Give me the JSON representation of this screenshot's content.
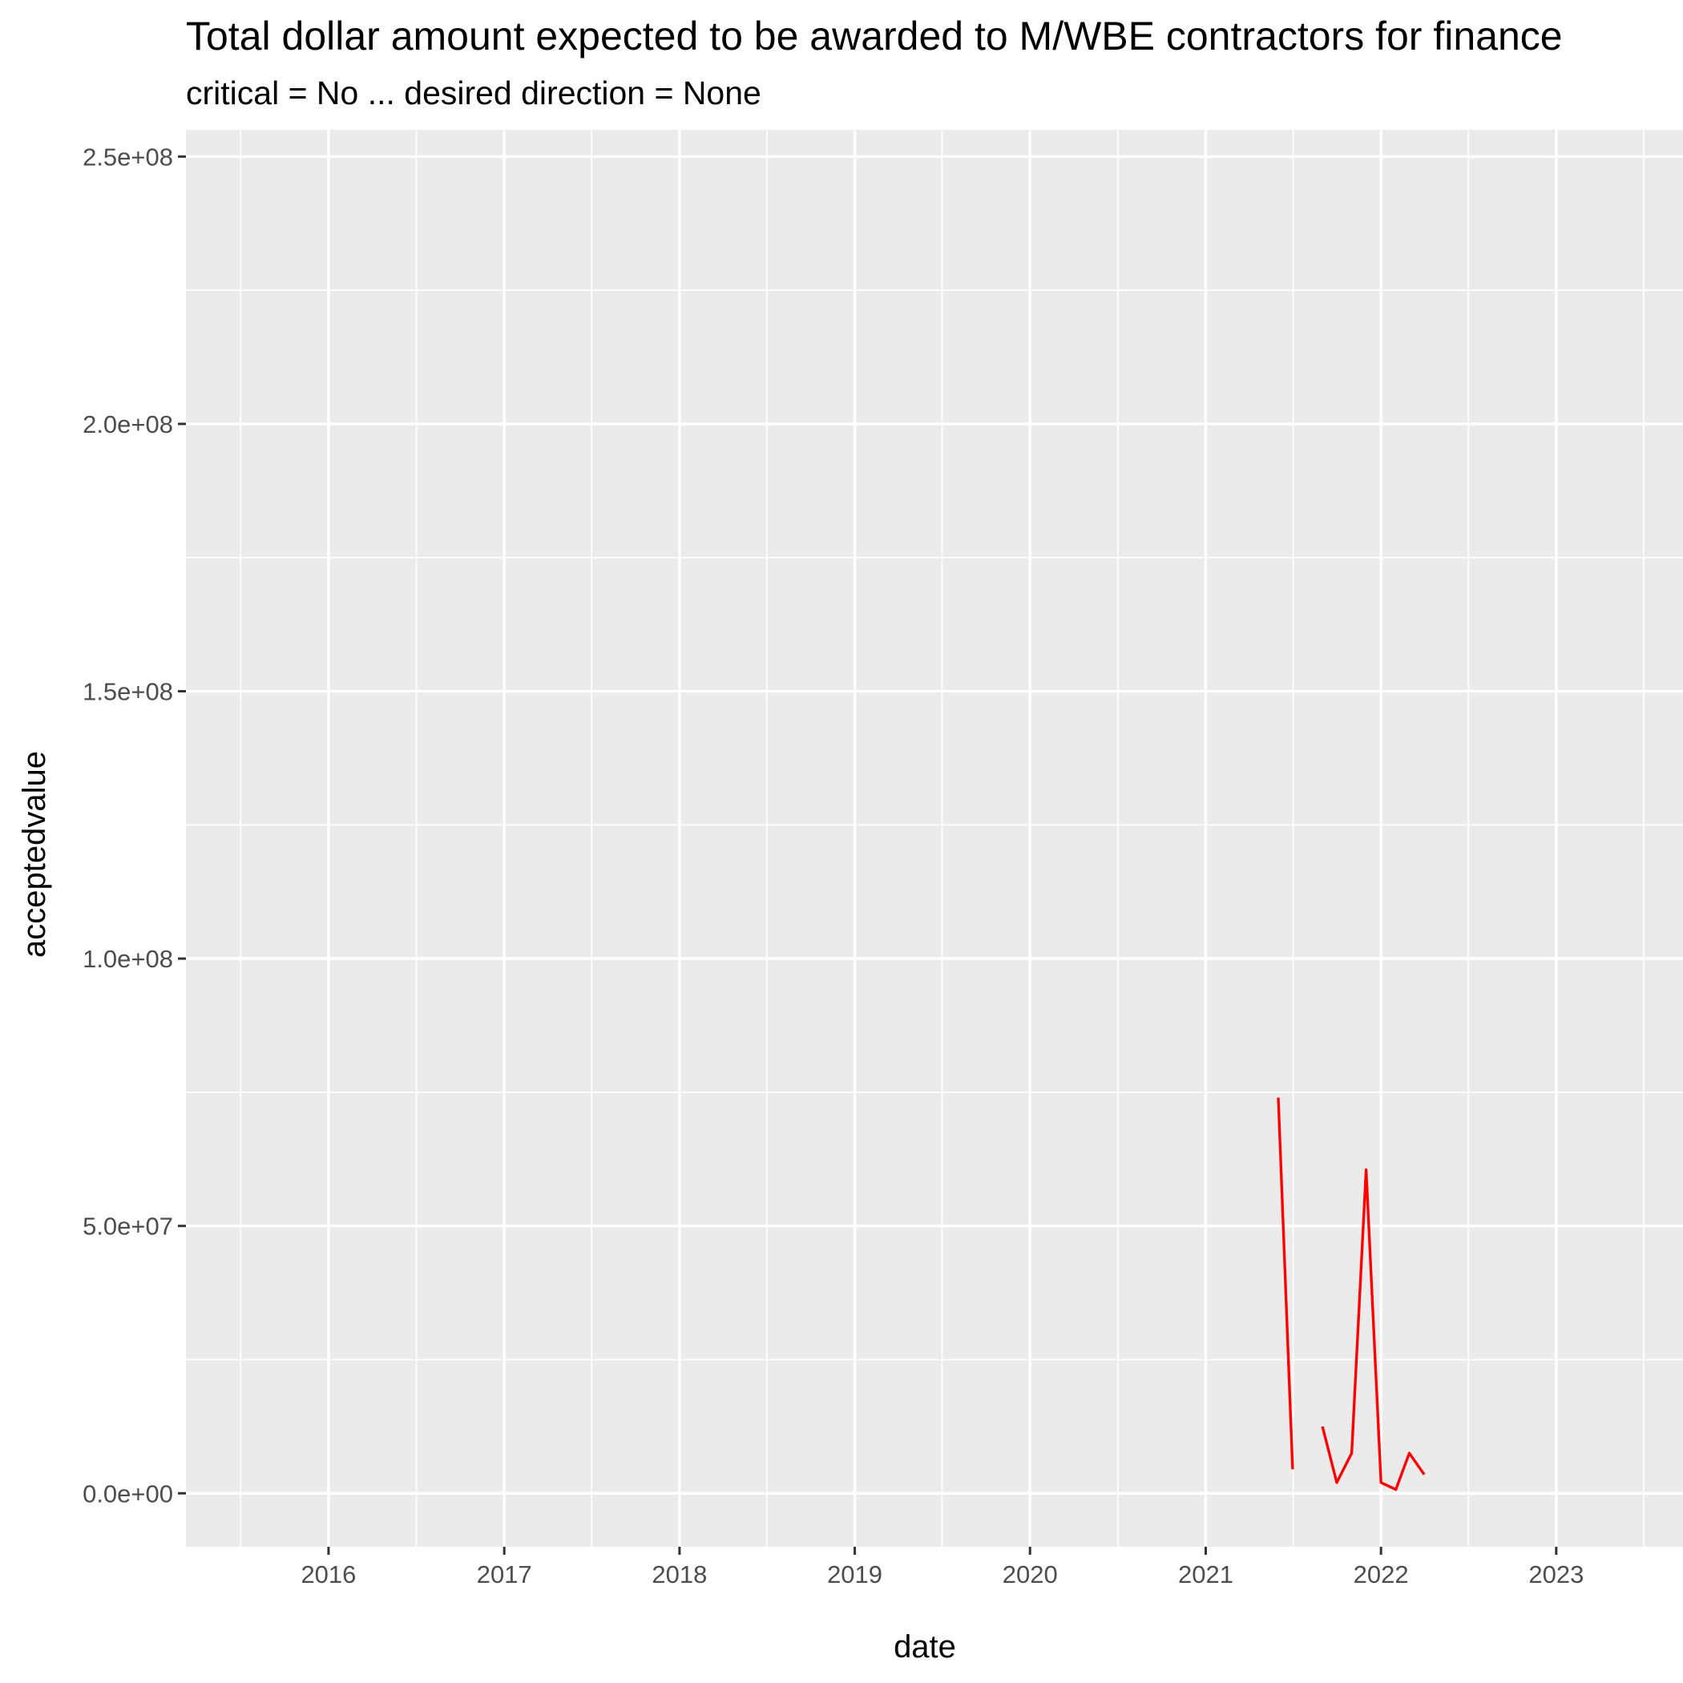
{
  "chart_data": {
    "type": "line",
    "title": "Total dollar amount expected to be awarded to M/WBE contractors for finance",
    "subtitle": "critical = No ... desired direction = None",
    "xlabel": "date",
    "ylabel": "acceptedvalue",
    "x_ticks": [
      "2016",
      "2017",
      "2018",
      "2019",
      "2020",
      "2021",
      "2022",
      "2023"
    ],
    "y_ticks": [
      "0.0e+00",
      "5.0e+07",
      "1.0e+08",
      "1.5e+08",
      "2.0e+08",
      "2.5e+08"
    ],
    "xlim": [
      "2015-03-10",
      "2023-09-22"
    ],
    "ylim": [
      -10000000,
      255000000
    ],
    "grid": true,
    "background": "#ebebeb",
    "gridline_color": "#ffffff",
    "series": [
      {
        "color": "#ff0000",
        "segments": [
          [
            {
              "x": "2021-06-01",
              "y": 74000000
            },
            {
              "x": "2021-07-01",
              "y": 4500000
            }
          ],
          [
            {
              "x": "2021-09-01",
              "y": 12500000
            },
            {
              "x": "2021-10-01",
              "y": 2000000
            },
            {
              "x": "2021-11-01",
              "y": 7500000
            },
            {
              "x": "2021-12-01",
              "y": 60500000
            },
            {
              "x": "2022-01-01",
              "y": 2000000
            },
            {
              "x": "2022-02-01",
              "y": 700000
            },
            {
              "x": "2022-03-01",
              "y": 7500000
            },
            {
              "x": "2022-04-01",
              "y": 3500000
            }
          ]
        ]
      }
    ]
  }
}
